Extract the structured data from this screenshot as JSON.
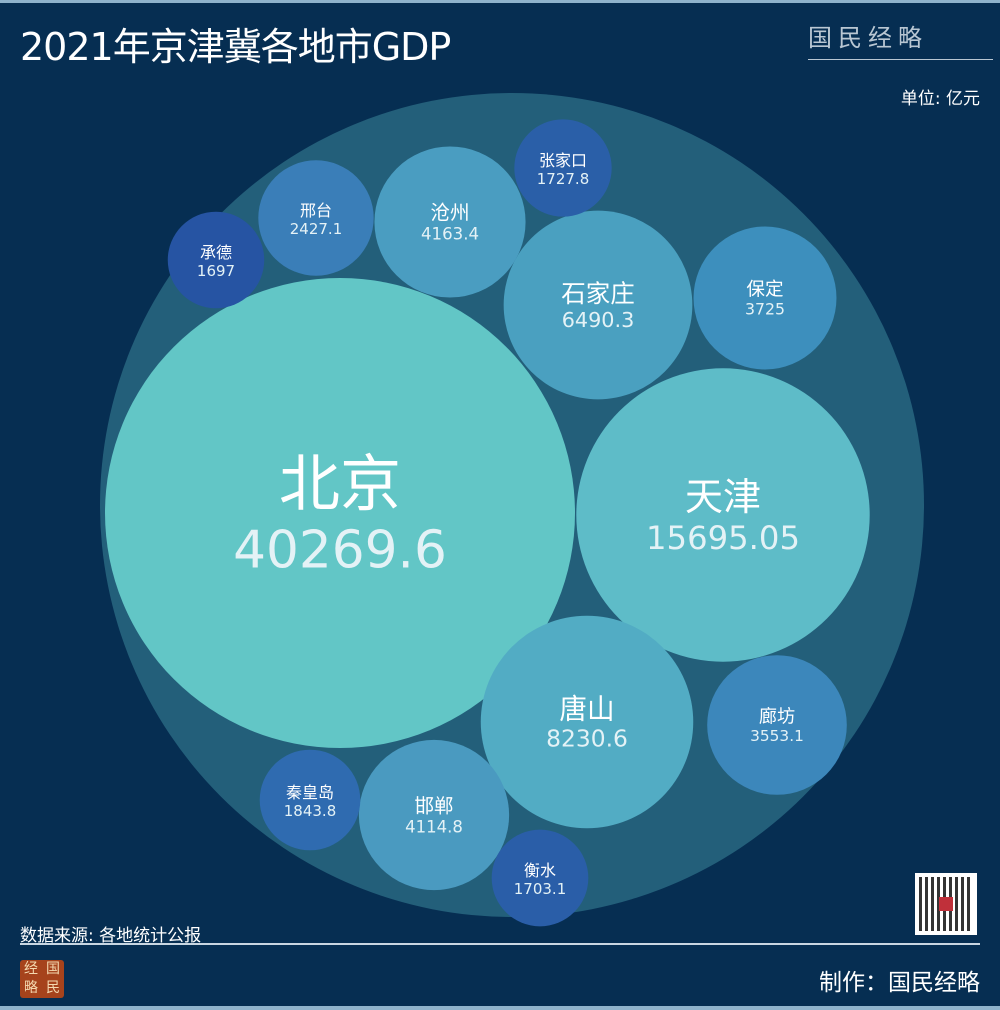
{
  "title": "2021年京津冀各地市GDP",
  "brand": "国民经略",
  "unit": "单位: 亿元",
  "source": "数据来源: 各地统计公报",
  "maker": "制作：国民经略",
  "seal": [
    "经",
    "国",
    "略",
    "民"
  ],
  "colors": {
    "background": "#062e52",
    "outer": "#235f7a"
  },
  "chart_data": {
    "type": "bubble",
    "title": "2021年京津冀各地市GDP",
    "unit": "亿元",
    "categories": [
      "北京",
      "天津",
      "唐山",
      "石家庄",
      "沧州",
      "邯郸",
      "保定",
      "廊坊",
      "邢台",
      "秦皇岛",
      "张家口",
      "衡水",
      "承德"
    ],
    "values": [
      40269.6,
      15695.05,
      8230.6,
      6490.3,
      4163.4,
      4114.8,
      3725,
      3553.1,
      2427.1,
      1843.8,
      1727.8,
      1703.1,
      1697
    ],
    "labels": [
      "40269.6",
      "15695.05",
      "8230.6",
      "6490.3",
      "4163.4",
      "4114.8",
      "3725",
      "3553.1",
      "2427.1",
      "1843.8",
      "1727.8",
      "1703.1",
      "1697"
    ],
    "colors": [
      "#62c6c6",
      "#5ebcc8",
      "#52acc4",
      "#4aa0c0",
      "#4a9dc1",
      "#4a9ac0",
      "#3d8fbd",
      "#3c87bb",
      "#3a7eb8",
      "#2f6bb0",
      "#2a5fa8",
      "#2a5ea8",
      "#2654a3"
    ]
  }
}
